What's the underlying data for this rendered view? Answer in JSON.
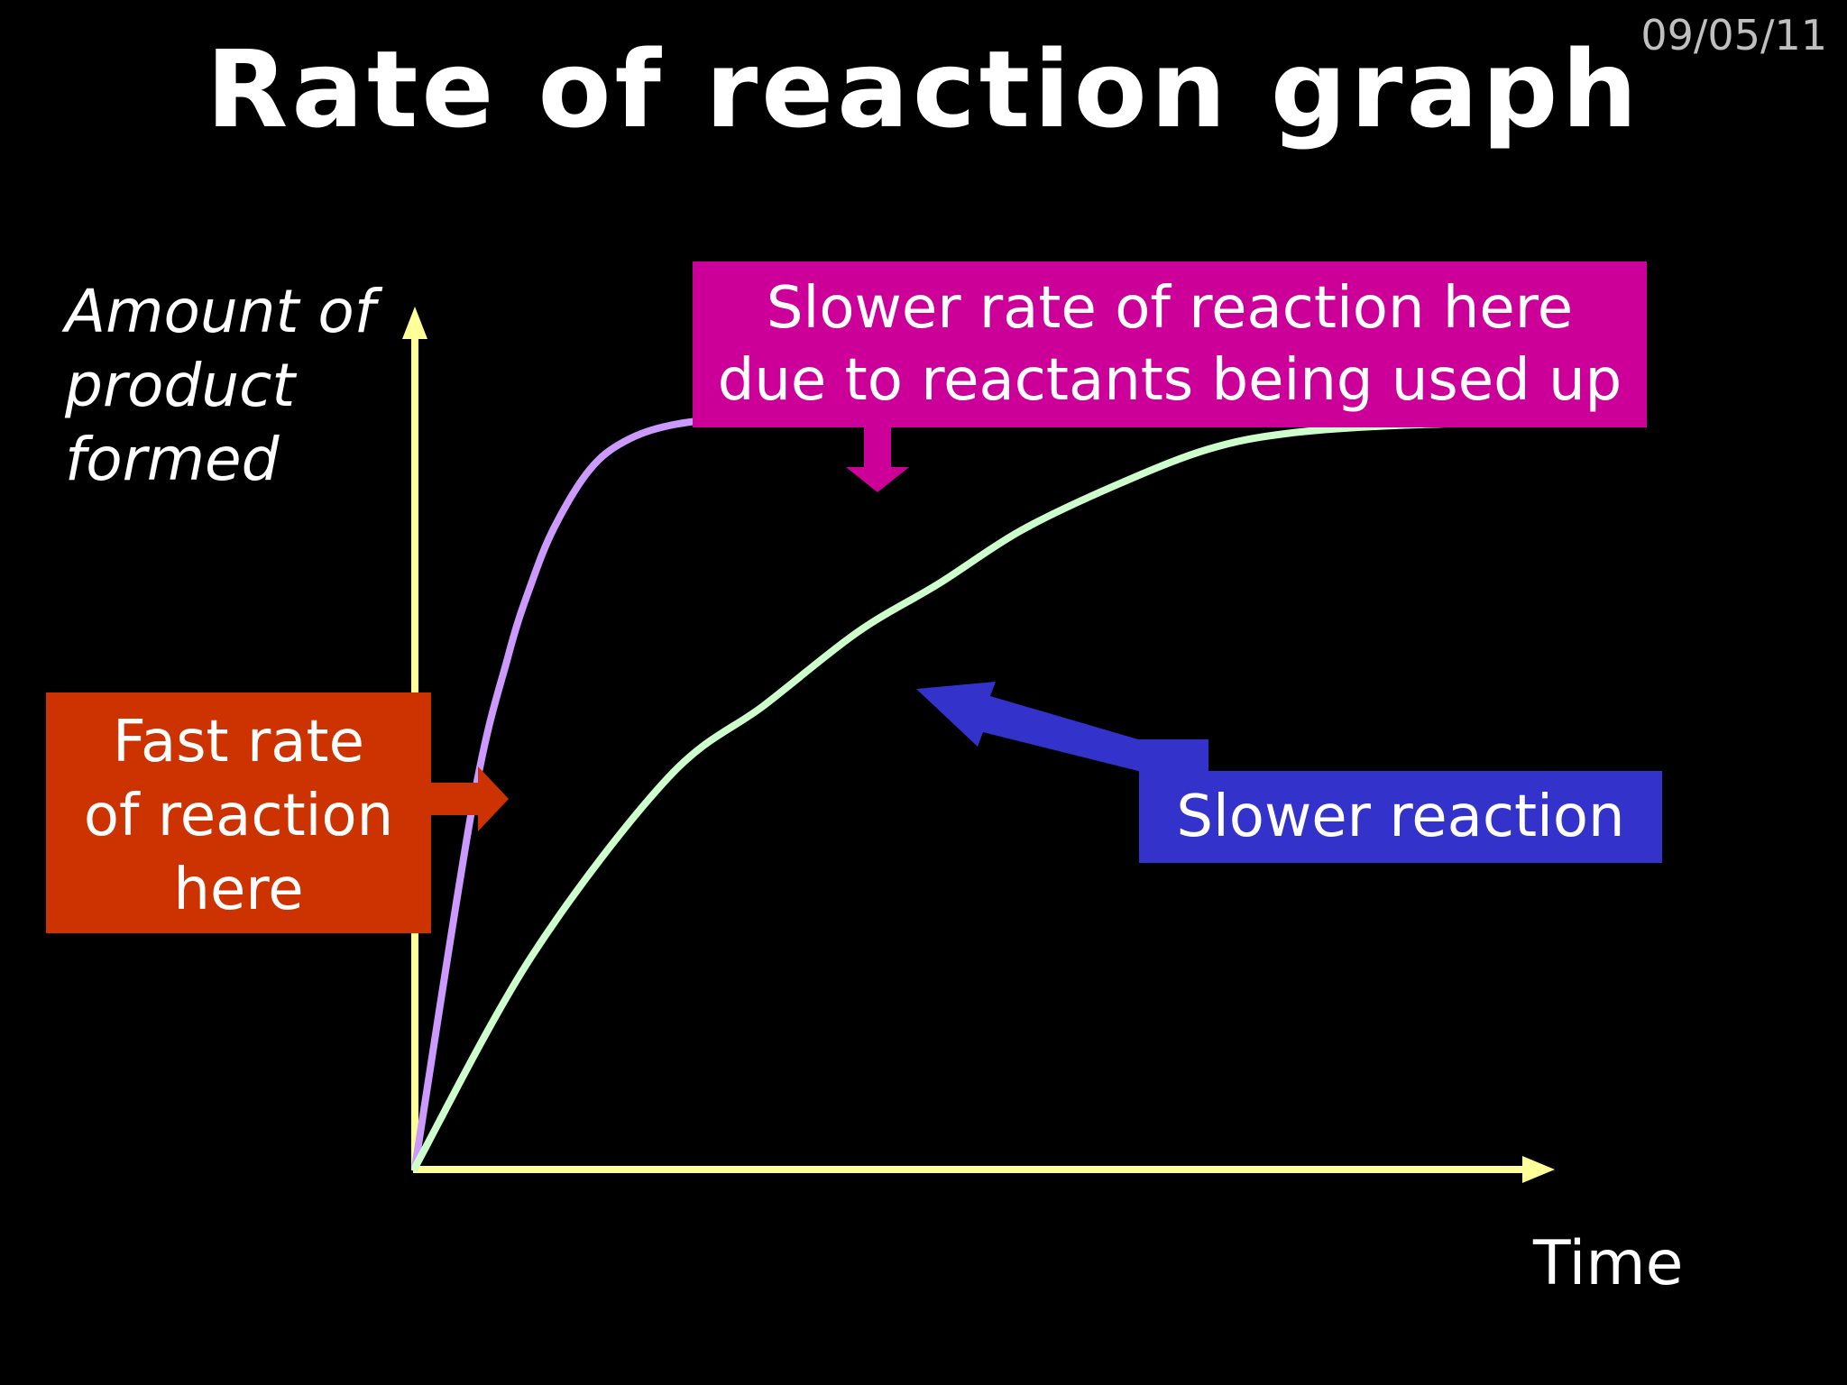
{
  "slide": {
    "title": "Rate of reaction graph",
    "date": "09/05/11"
  },
  "colors": {
    "background": "#000000",
    "axes": "#ffff99",
    "fast_curve": "#cc99ff",
    "slow_curve": "#ccffcc",
    "box_top": "#cc0099",
    "box_fast": "#cc3300",
    "box_slow": "#3333cc"
  },
  "chart_data": {
    "type": "line",
    "title": "Rate of reaction graph",
    "xlabel": "Time",
    "ylabel": "Amount of\nproduct\nformed",
    "xlim": [
      0,
      100
    ],
    "ylim": [
      0,
      100
    ],
    "grid": false,
    "ticks": false,
    "series": [
      {
        "color": "#cc99ff",
        "x": [
          0,
          5,
          8,
          10,
          12,
          15,
          18,
          22,
          28,
          35,
          45,
          60,
          80,
          100
        ],
        "y": [
          0,
          45,
          63,
          72,
          79,
          86,
          89.5,
          91.5,
          92.5,
          93,
          93.3,
          93.4,
          93.5,
          93.5
        ]
      },
      {
        "color": "#ccffcc",
        "x": [
          0,
          10,
          21.7,
          30,
          38,
          45,
          52,
          60,
          68,
          75,
          85,
          100
        ],
        "y": [
          0,
          26,
          48,
          57,
          66,
          72,
          78.5,
          84,
          88.5,
          90.5,
          91.5,
          92
        ]
      }
    ]
  },
  "annotations": {
    "top": "Slower rate of reaction here\ndue to reactants being used up",
    "fast": "Fast rate\nof reaction\nhere",
    "slow": "Slower reaction"
  }
}
